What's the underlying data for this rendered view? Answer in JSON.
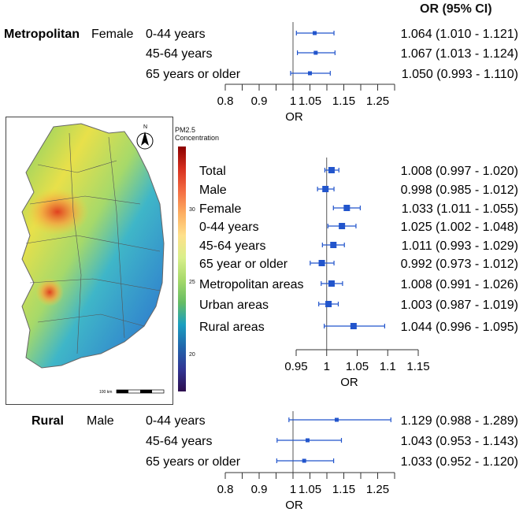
{
  "header": {
    "ci_title": "OR (95% CI)"
  },
  "map": {
    "legend_title_line1": "PM2.5",
    "legend_title_line2": "Concentration",
    "legend_ticks": [
      "30",
      "25",
      "20"
    ],
    "legend_tick_values": [
      30,
      25,
      20
    ],
    "north_label": "N",
    "scale_label": "100 km"
  },
  "chart_data": [
    {
      "type": "forest",
      "group_label": "Metropolitan",
      "subgroup_label": "Female",
      "xlabel": "OR",
      "xlim": [
        0.8,
        1.3
      ],
      "ticks": [
        0.8,
        0.85,
        0.9,
        0.95,
        1,
        1.05,
        1.1,
        1.15,
        1.2,
        1.25,
        1.3
      ],
      "tick_labels": [
        {
          "value": 0.8,
          "text": "0.8"
        },
        {
          "value": 0.9,
          "text": "0.9"
        },
        {
          "value": 1.0,
          "text": "1"
        },
        {
          "value": 1.05,
          "text": "1.05"
        },
        {
          "value": 1.15,
          "text": "1.15"
        },
        {
          "value": 1.25,
          "text": "1.25"
        }
      ],
      "reference": 1,
      "rows": [
        {
          "label": "0-44 years",
          "or": 1.064,
          "lo": 1.01,
          "hi": 1.121,
          "ci_text": "1.064 (1.010 - 1.121)"
        },
        {
          "label": "45-64 years",
          "or": 1.067,
          "lo": 1.013,
          "hi": 1.124,
          "ci_text": "1.067 (1.013 - 1.124)"
        },
        {
          "label": "65 years or older",
          "or": 1.05,
          "lo": 0.993,
          "hi": 1.11,
          "ci_text": "1.050 (0.993 - 1.110)"
        }
      ]
    },
    {
      "type": "forest",
      "group_label": "",
      "subgroup_label": "",
      "xlabel": "OR",
      "xlim": [
        0.95,
        1.15
      ],
      "ticks": [
        0.95,
        1,
        1.05,
        1.1,
        1.15
      ],
      "tick_labels": [
        {
          "value": 0.95,
          "text": "0.95"
        },
        {
          "value": 1,
          "text": "1"
        },
        {
          "value": 1.05,
          "text": "1.05"
        },
        {
          "value": 1.1,
          "text": "1.1"
        },
        {
          "value": 1.15,
          "text": "1.15"
        }
      ],
      "reference": 1,
      "rows": [
        {
          "label": "Total",
          "or": 1.008,
          "lo": 0.997,
          "hi": 1.02,
          "ci_text": "1.008 (0.997 - 1.020)"
        },
        {
          "label": "Male",
          "or": 0.998,
          "lo": 0.985,
          "hi": 1.012,
          "ci_text": "0.998 (0.985 - 1.012)"
        },
        {
          "label": "Female",
          "or": 1.033,
          "lo": 1.011,
          "hi": 1.055,
          "ci_text": "1.033 (1.011 - 1.055)"
        },
        {
          "label": "0-44 years",
          "or": 1.025,
          "lo": 1.002,
          "hi": 1.048,
          "ci_text": "1.025 (1.002 - 1.048)"
        },
        {
          "label": "45-64 years",
          "or": 1.011,
          "lo": 0.993,
          "hi": 1.029,
          "ci_text": "1.011 (0.993 - 1.029)"
        },
        {
          "label": "65 year or older",
          "or": 0.992,
          "lo": 0.973,
          "hi": 1.012,
          "ci_text": "0.992 (0.973 - 1.012)"
        },
        {
          "label": "Metropolitan areas",
          "or": 1.008,
          "lo": 0.991,
          "hi": 1.026,
          "ci_text": "1.008 (0.991 - 1.026)"
        },
        {
          "label": "Urban areas",
          "or": 1.003,
          "lo": 0.987,
          "hi": 1.019,
          "ci_text": "1.003 (0.987 - 1.019)"
        },
        {
          "label": "Rural areas",
          "or": 1.044,
          "lo": 0.996,
          "hi": 1.095,
          "ci_text": "1.044 (0.996 - 1.095)"
        }
      ]
    },
    {
      "type": "forest",
      "group_label": "Rural",
      "subgroup_label": "Male",
      "xlabel": "OR",
      "xlim": [
        0.8,
        1.3
      ],
      "ticks": [
        0.8,
        0.85,
        0.9,
        0.95,
        1,
        1.05,
        1.1,
        1.15,
        1.2,
        1.25,
        1.3
      ],
      "tick_labels": [
        {
          "value": 0.8,
          "text": "0.8"
        },
        {
          "value": 0.9,
          "text": "0.9"
        },
        {
          "value": 1.0,
          "text": "1"
        },
        {
          "value": 1.05,
          "text": "1.05"
        },
        {
          "value": 1.15,
          "text": "1.15"
        },
        {
          "value": 1.25,
          "text": "1.25"
        }
      ],
      "reference": 1,
      "rows": [
        {
          "label": "0-44 years",
          "or": 1.129,
          "lo": 0.988,
          "hi": 1.289,
          "ci_text": "1.129 (0.988 - 1.289)"
        },
        {
          "label": "45-64 years",
          "or": 1.043,
          "lo": 0.953,
          "hi": 1.143,
          "ci_text": "1.043 (0.953 - 1.143)"
        },
        {
          "label": "65 years or older",
          "or": 1.033,
          "lo": 0.952,
          "hi": 1.12,
          "ci_text": "1.033 (0.952 - 1.120)"
        }
      ]
    }
  ],
  "colors": {
    "marker": "#2255cc",
    "axis": "#333333"
  }
}
